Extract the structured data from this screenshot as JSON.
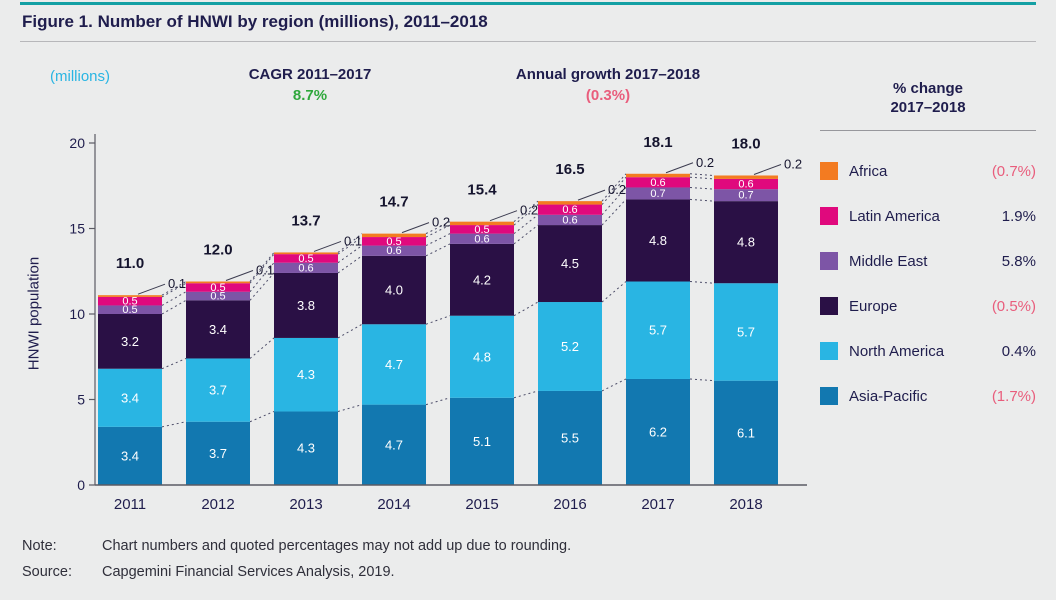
{
  "figure": {
    "title": "Figure 1. Number of HNWI by region (millions), 2011–2018",
    "note_label": "Note:",
    "note": "Chart numbers and quoted percentages may not add up due to rounding.",
    "source_label": "Source:",
    "source": "Capgemini Financial Services Analysis, 2019."
  },
  "annotations": {
    "units": "(millions)",
    "cagr_label": "CAGR 2011–2017",
    "cagr_value": "8.7%",
    "growth_label": "Annual growth 2017–2018",
    "growth_value": "(0.3%)"
  },
  "legend": {
    "header_line1": "% change",
    "header_line2": "2017–2018",
    "items": [
      {
        "name": "Africa",
        "change": "(0.7%)",
        "negative": true,
        "color": "#f37b21"
      },
      {
        "name": "Latin America",
        "change": "1.9%",
        "negative": false,
        "color": "#e0097d"
      },
      {
        "name": "Middle East",
        "change": "5.8%",
        "negative": false,
        "color": "#7d55a6"
      },
      {
        "name": "Europe",
        "change": "(0.5%)",
        "negative": true,
        "color": "#2a1045"
      },
      {
        "name": "North America",
        "change": "0.4%",
        "negative": false,
        "color": "#29b5e3"
      },
      {
        "name": "Asia-Pacific",
        "change": "(1.7%)",
        "negative": true,
        "color": "#1278b0"
      }
    ]
  },
  "chart_data": {
    "type": "bar",
    "stacked": true,
    "title": "Number of HNWI by region (millions), 2011–2018",
    "categories": [
      "2011",
      "2012",
      "2013",
      "2014",
      "2015",
      "2016",
      "2017",
      "2018"
    ],
    "series": [
      {
        "name": "Asia-Pacific",
        "color": "#1278b0",
        "values": [
          3.4,
          3.7,
          4.3,
          4.7,
          5.1,
          5.5,
          6.2,
          6.1
        ]
      },
      {
        "name": "North America",
        "color": "#29b5e3",
        "values": [
          3.4,
          3.7,
          4.3,
          4.7,
          4.8,
          5.2,
          5.7,
          5.7
        ]
      },
      {
        "name": "Europe",
        "color": "#2a1045",
        "values": [
          3.2,
          3.4,
          3.8,
          4.0,
          4.2,
          4.5,
          4.8,
          4.8
        ]
      },
      {
        "name": "Middle East",
        "color": "#7d55a6",
        "values": [
          0.5,
          0.5,
          0.6,
          0.6,
          0.6,
          0.6,
          0.7,
          0.7
        ]
      },
      {
        "name": "Latin America",
        "color": "#e0097d",
        "values": [
          0.5,
          0.5,
          0.5,
          0.5,
          0.5,
          0.6,
          0.6,
          0.6
        ]
      },
      {
        "name": "Africa",
        "color": "#f37b21",
        "values": [
          0.1,
          0.1,
          0.1,
          0.2,
          0.2,
          0.2,
          0.2,
          0.2
        ]
      }
    ],
    "totals": [
      "11.0",
      "12.0",
      "13.7",
      "14.7",
      "15.4",
      "16.5",
      "18.1",
      "18.0"
    ],
    "xlabel": "",
    "ylabel": "HNWI population",
    "yticks": [
      0,
      5,
      10,
      15,
      20
    ],
    "ylim": [
      0,
      20
    ],
    "grid": false,
    "legend_position": "right"
  }
}
